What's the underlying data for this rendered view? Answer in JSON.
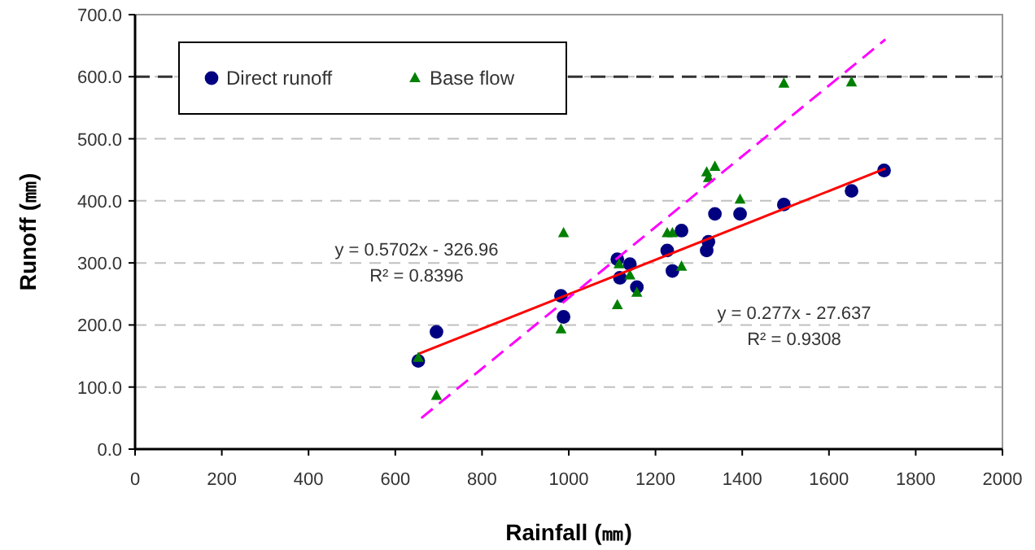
{
  "chart_data": {
    "type": "scatter",
    "xlabel": "Rainfall (㎜)",
    "ylabel": "Runoff (㎜)",
    "xlim": [
      0,
      2000
    ],
    "xticks": [
      0,
      200,
      400,
      600,
      800,
      1000,
      1200,
      1400,
      1600,
      1800,
      2000
    ],
    "ylim": [
      0,
      700
    ],
    "yticks": [
      {
        "value": 0,
        "label": "0.0"
      },
      {
        "value": 100,
        "label": "100.0"
      },
      {
        "value": 200,
        "label": "200.0"
      },
      {
        "value": 300,
        "label": "300.0"
      },
      {
        "value": 400,
        "label": "400.0"
      },
      {
        "value": 500,
        "label": "500.0"
      },
      {
        "value": 600,
        "label": "600.0"
      },
      {
        "value": 700,
        "label": "700.0"
      }
    ],
    "grid": "y",
    "legend": "top left",
    "ref_lines": [
      {
        "axis": "y",
        "value": 600,
        "color": "#333333",
        "line_style": "dashed"
      }
    ],
    "series": [
      {
        "name": "Direct runoff",
        "type": "scatter",
        "marker": "circle",
        "color": "#000080",
        "x": [
          653,
          695,
          982,
          988,
          1112,
          1118,
          1141,
          1157,
          1227,
          1239,
          1260,
          1318,
          1322,
          1337,
          1395,
          1496,
          1652,
          1727
        ],
        "values": [
          142,
          189,
          247,
          213,
          306,
          276,
          298,
          261,
          320,
          287,
          352,
          320,
          334,
          379,
          379,
          394,
          416,
          449
        ]
      },
      {
        "name": "Base flow",
        "type": "scatter",
        "marker": "triangle",
        "color": "#008000",
        "x": [
          653,
          695,
          982,
          988,
          1112,
          1116,
          1141,
          1157,
          1227,
          1239,
          1260,
          1318,
          1322,
          1337,
          1395,
          1496,
          1652
        ],
        "values": [
          147,
          86,
          193,
          348,
          232,
          298,
          280,
          252,
          348,
          348,
          294,
          446,
          437,
          455,
          402,
          589,
          591
        ]
      },
      {
        "type": "line",
        "color": "#ff0000",
        "line_style": "solid",
        "x": [
          655,
          1730
        ],
        "values": [
          154,
          452
        ]
      },
      {
        "type": "line",
        "color": "#ff00ff",
        "line_style": "dashed",
        "x": [
          660,
          1730
        ],
        "values": [
          50,
          660
        ]
      }
    ],
    "annotations": [
      "y = 0.5702x - 326.96\nR² = 0.8396",
      "y = 0.277x - 27.637\nR² = 0.9308"
    ]
  }
}
